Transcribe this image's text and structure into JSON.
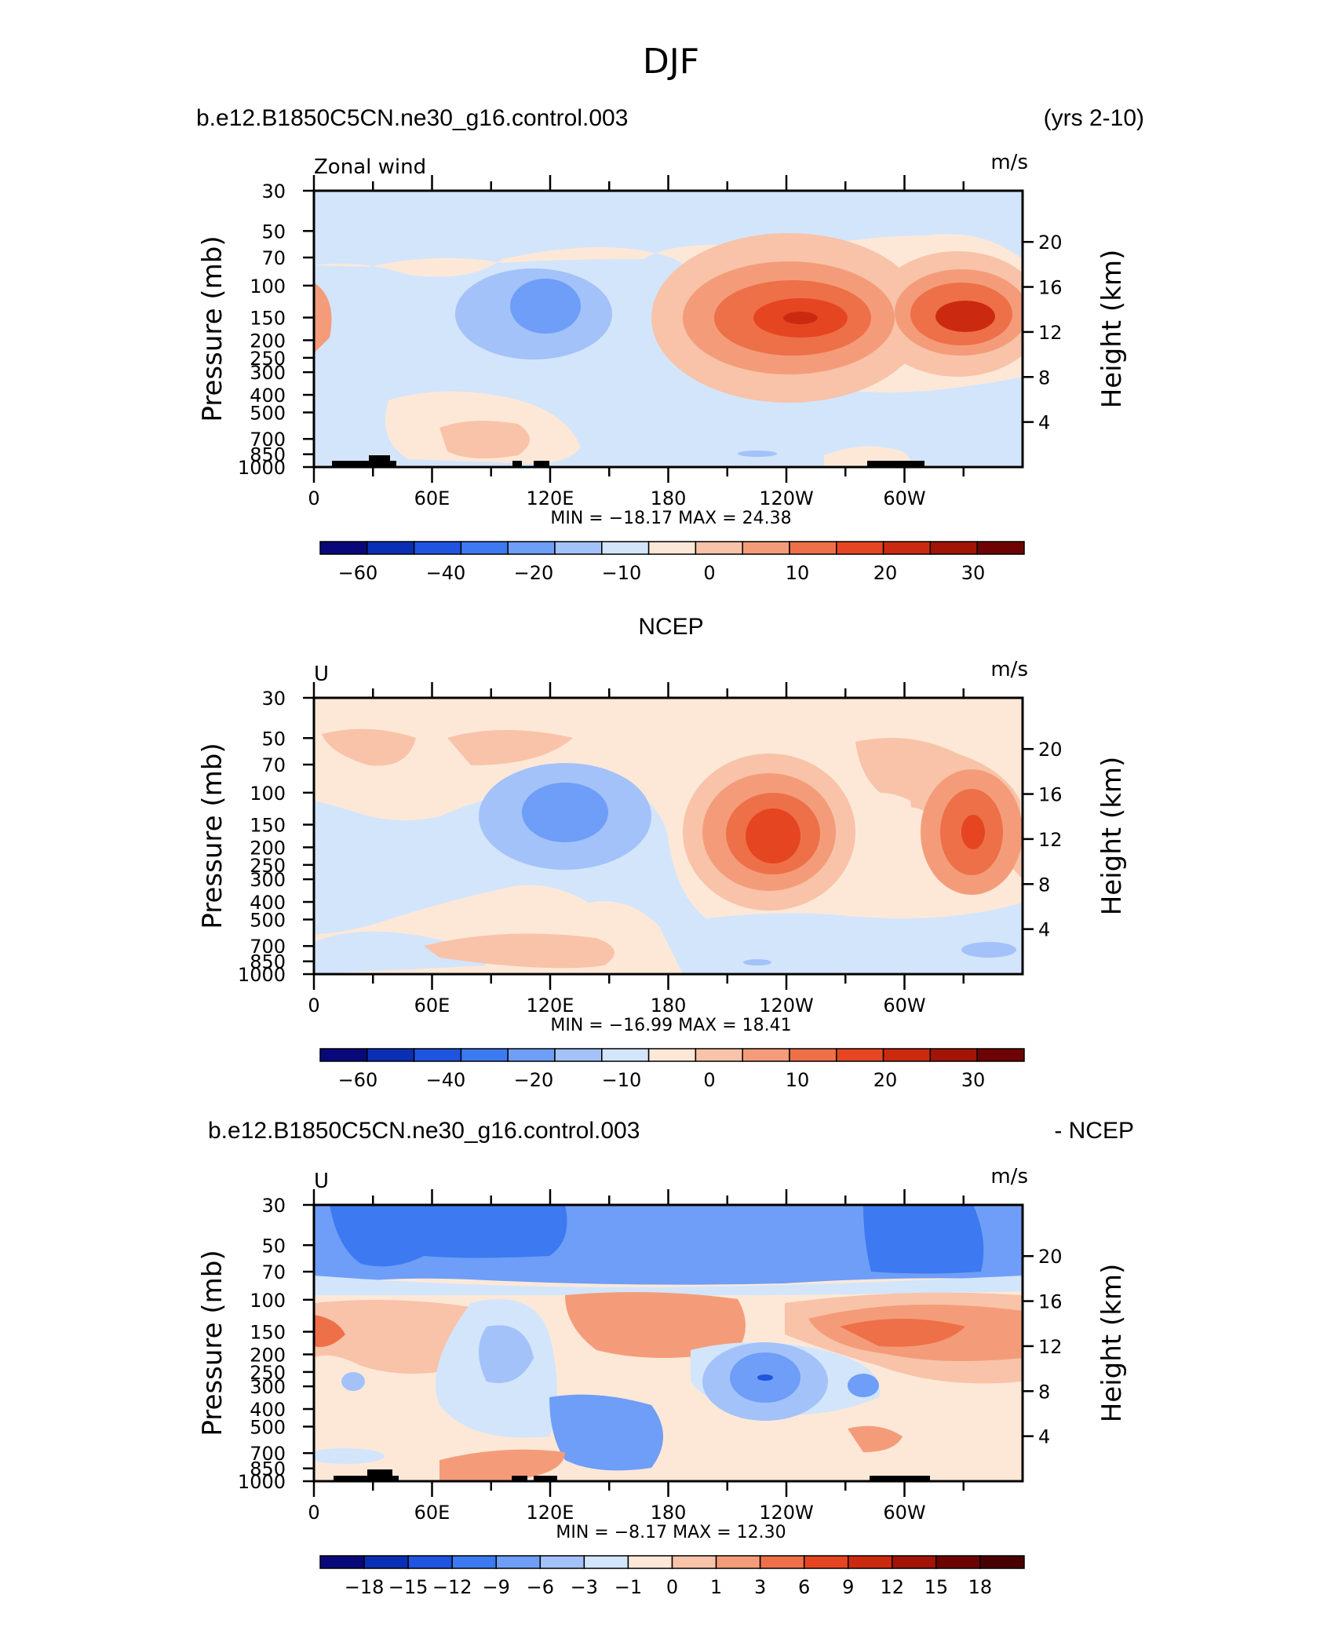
{
  "figure": {
    "title": "DJF"
  },
  "panels": [
    {
      "left_title": "b.e12.B1850C5CN.ne30_g16.control.003",
      "right_title": "(yrs 2-10)",
      "var_label": "Zonal wind",
      "units": "m/s",
      "stats": "MIN =  −18.17   MAX =   24.38",
      "colorbar_labels": [
        "−60",
        "−40",
        "−20",
        "−10",
        "0",
        "10",
        "20",
        "30"
      ],
      "colorbar_colors": [
        "#08087a",
        "#0a2fb5",
        "#1f54e0",
        "#3d79f0",
        "#6e9ef7",
        "#a3c2f9",
        "#d3e5fb",
        "#fde8d8",
        "#f8c3a8",
        "#f49c79",
        "#ee7048",
        "#e64522",
        "#cc2a10",
        "#a11406",
        "#6e0303"
      ]
    },
    {
      "left_title": "",
      "center_title": "NCEP",
      "right_title": "",
      "var_label": "U",
      "units": "m/s",
      "stats": "MIN =  −16.99   MAX =   18.41",
      "colorbar_labels": [
        "−60",
        "−40",
        "−20",
        "−10",
        "0",
        "10",
        "20",
        "30"
      ],
      "colorbar_colors": [
        "#08087a",
        "#0a2fb5",
        "#1f54e0",
        "#3d79f0",
        "#6e9ef7",
        "#a3c2f9",
        "#d3e5fb",
        "#fde8d8",
        "#f8c3a8",
        "#f49c79",
        "#ee7048",
        "#e64522",
        "#cc2a10",
        "#a11406",
        "#6e0303"
      ]
    },
    {
      "left_title": "b.e12.B1850C5CN.ne30_g16.control.003",
      "right_title": "- NCEP",
      "var_label": "U",
      "units": "m/s",
      "stats": "MIN =    −8.17   MAX =   12.30",
      "colorbar_labels": [
        "−18",
        "−15",
        "−12",
        "−9",
        "−6",
        "−3",
        "−1",
        "0",
        "1",
        "3",
        "6",
        "9",
        "12",
        "15",
        "18"
      ],
      "colorbar_colors": [
        "#08087a",
        "#0a2fb5",
        "#1f54e0",
        "#3d79f0",
        "#6e9ef7",
        "#a3c2f9",
        "#d3e5fb",
        "#fde8d8",
        "#f8c3a8",
        "#f49c79",
        "#ee7048",
        "#e64522",
        "#cc2a10",
        "#a11406",
        "#6e0303",
        "#4a0000"
      ]
    }
  ],
  "chart_data": [
    {
      "type": "heatmap",
      "title": "Zonal wind",
      "xlabel": "",
      "ylabel": "Pressure (mb)",
      "y2label": "Height (km)",
      "x_ticks": [
        "0",
        "60E",
        "120E",
        "180",
        "120W",
        "60W"
      ],
      "y_ticks": [
        "30",
        "50",
        "70",
        "100",
        "150",
        "200",
        "250",
        "300",
        "400",
        "500",
        "700",
        "850",
        "1000"
      ],
      "y2_ticks": [
        "20",
        "16",
        "12",
        "8",
        "4"
      ],
      "min": -18.17,
      "max": 24.38,
      "features": [
        {
          "lon": 135,
          "p": 150,
          "value": -15
        },
        {
          "lon": 240,
          "p": 150,
          "value": 22
        },
        {
          "lon": 330,
          "p": 150,
          "value": 24
        }
      ]
    },
    {
      "type": "heatmap",
      "title": "U",
      "xlabel": "",
      "ylabel": "Pressure (mb)",
      "y2label": "Height (km)",
      "x_ticks": [
        "0",
        "60E",
        "120E",
        "180",
        "120W",
        "60W"
      ],
      "y_ticks": [
        "30",
        "50",
        "70",
        "100",
        "150",
        "200",
        "250",
        "300",
        "400",
        "500",
        "700",
        "850",
        "1000"
      ],
      "y2_ticks": [
        "20",
        "16",
        "12",
        "8",
        "4"
      ],
      "min": -16.99,
      "max": 18.41,
      "features": [
        {
          "lon": 135,
          "p": 150,
          "value": -15
        },
        {
          "lon": 235,
          "p": 170,
          "value": 18
        },
        {
          "lon": 330,
          "p": 150,
          "value": 17
        }
      ]
    },
    {
      "type": "heatmap",
      "title": "U",
      "xlabel": "",
      "ylabel": "Pressure (mb)",
      "y2label": "Height (km)",
      "x_ticks": [
        "0",
        "60E",
        "120E",
        "180",
        "120W",
        "60W"
      ],
      "y_ticks": [
        "30",
        "50",
        "70",
        "100",
        "150",
        "200",
        "250",
        "300",
        "400",
        "500",
        "700",
        "850",
        "1000"
      ],
      "y2_ticks": [
        "20",
        "16",
        "12",
        "8",
        "4"
      ],
      "min": -8.17,
      "max": 12.3,
      "features": [
        {
          "lon": 80,
          "p": 50,
          "value": -7
        },
        {
          "lon": 295,
          "p": 50,
          "value": -7
        },
        {
          "lon": 225,
          "p": 250,
          "value": -8
        },
        {
          "lon": 300,
          "p": 150,
          "value": 11
        }
      ]
    }
  ]
}
